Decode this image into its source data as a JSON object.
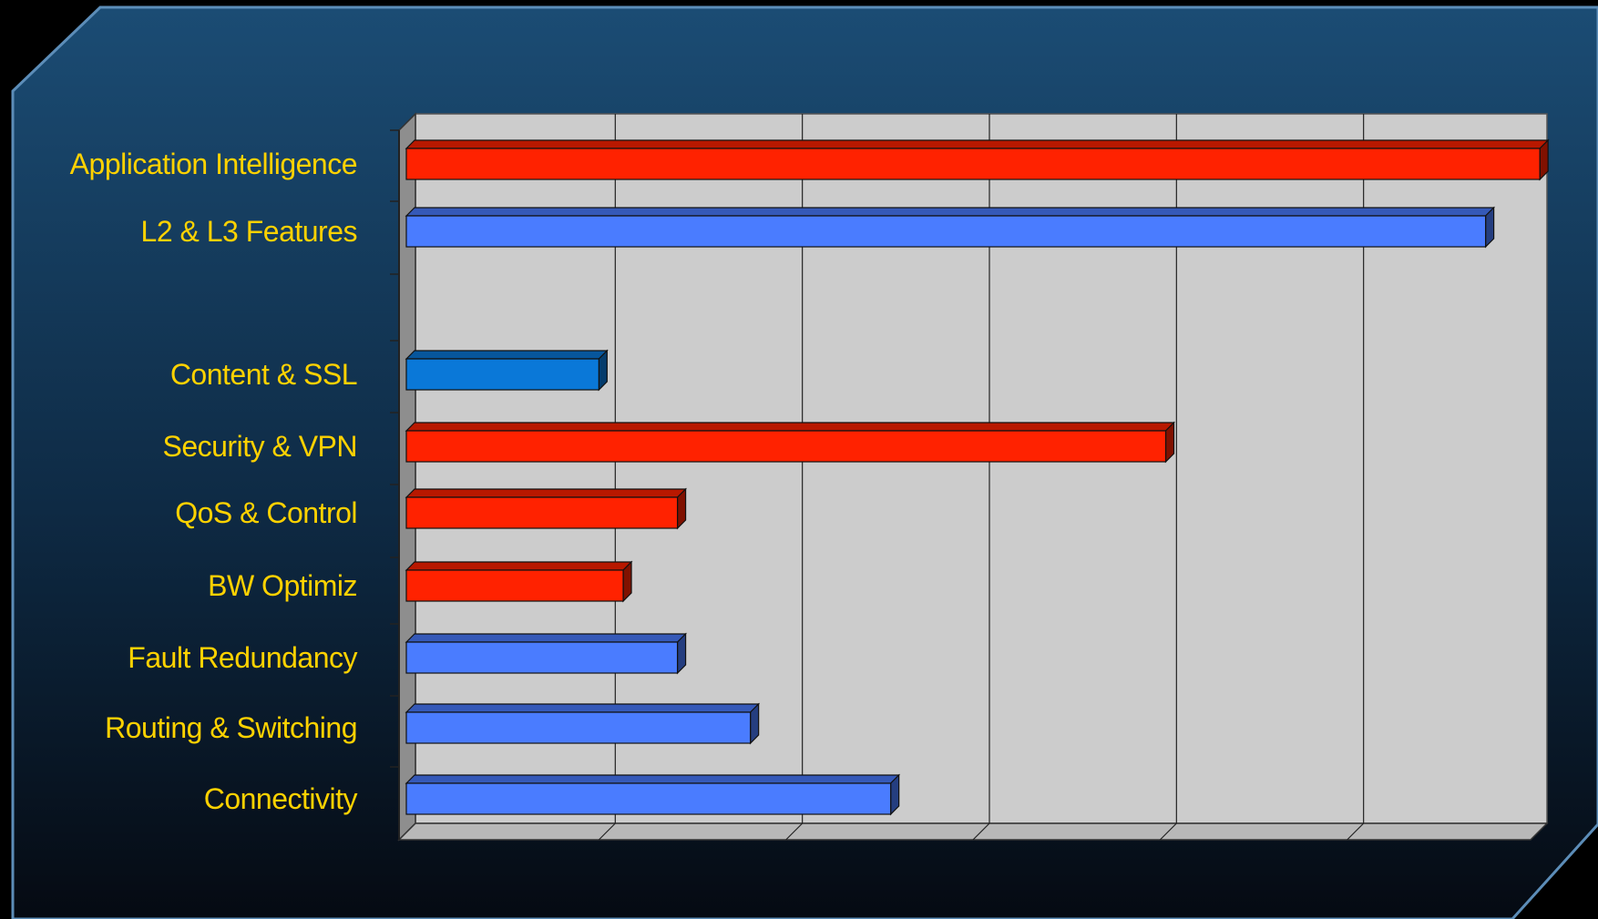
{
  "chart_data": {
    "type": "bar",
    "orientation": "horizontal",
    "style": "3d",
    "categories": [
      "Application Intelligence",
      "L2 & L3 Features",
      "",
      "Content & SSL",
      "Security & VPN",
      "QoS & Control",
      "BW Optimiz",
      "Fault Redundancy",
      "Routing & Switching",
      "Connectivity"
    ],
    "values": [
      6.03,
      5.74,
      null,
      1.0,
      4.03,
      1.42,
      1.13,
      1.42,
      1.81,
      2.56
    ],
    "bar_colors": [
      "#FF2200",
      "#4A7CFF",
      null,
      "#0A78D8",
      "#FF2200",
      "#FF2200",
      "#FF2200",
      "#4A7CFF",
      "#4A7CFF",
      "#4A7CFF"
    ],
    "xlim": [
      0,
      6
    ],
    "grid": true,
    "title": "",
    "xlabel": "",
    "ylabel": ""
  },
  "colors": {
    "label": "#FFD200",
    "plot_background": "#CCCCCC",
    "plot_wall": "#8E8E8E",
    "frame_edge": "#5C8DB8"
  }
}
